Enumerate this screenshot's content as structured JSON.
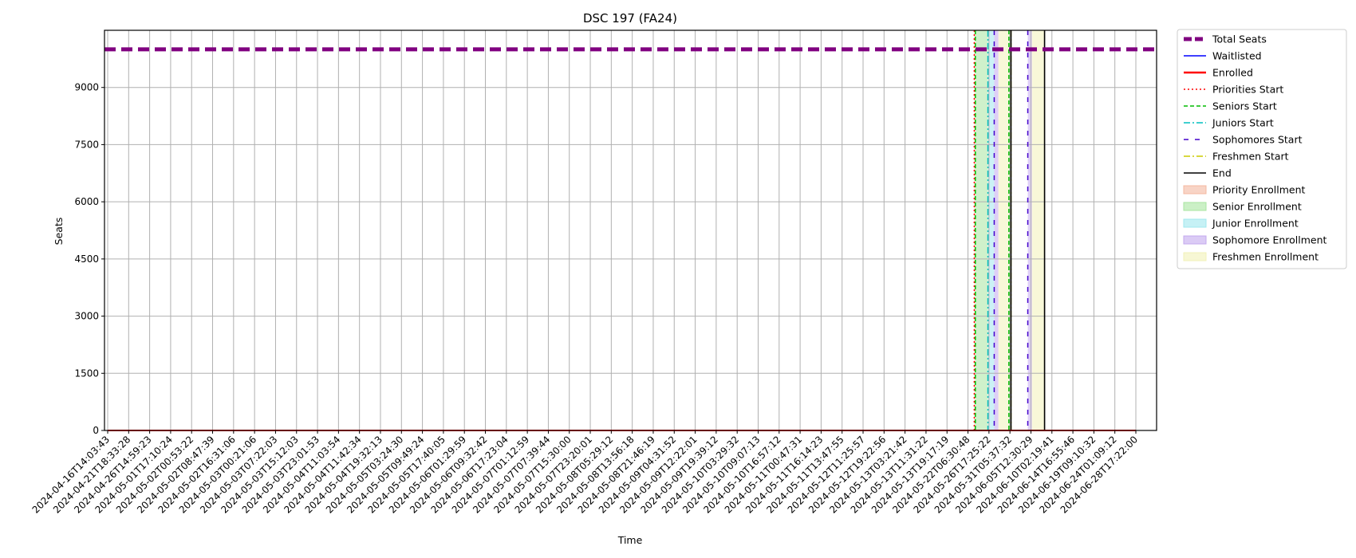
{
  "chart_data": {
    "type": "line",
    "title": "DSC 197 (FA24)",
    "xlabel": "Time",
    "ylabel": "Seats",
    "ylim": [
      0,
      10500
    ],
    "yticks": [
      0,
      1500,
      3000,
      4500,
      6000,
      7500,
      9000
    ],
    "grid": true,
    "legend_position": "outside-right",
    "x_tick_labels": [
      "2024-04-16T14:03:43",
      "2024-04-21T18:33:28",
      "2024-04-26T14:59:23",
      "2024-05-01T17:10:24",
      "2024-05-02T00:53:22",
      "2024-05-02T08:47:39",
      "2024-05-02T16:31:06",
      "2024-05-03T00:21:06",
      "2024-05-03T07:22:03",
      "2024-05-03T15:12:03",
      "2024-05-03T23:01:53",
      "2024-05-04T11:03:54",
      "2024-05-04T11:42:34",
      "2024-05-04T19:32:13",
      "2024-05-05T03:24:30",
      "2024-05-05T09:49:24",
      "2024-05-05T17:40:05",
      "2024-05-06T01:29:59",
      "2024-05-06T09:32:42",
      "2024-05-06T17:23:04",
      "2024-05-07T01:12:59",
      "2024-05-07T07:39:44",
      "2024-05-07T15:30:00",
      "2024-05-07T23:20:01",
      "2024-05-08T05:29:12",
      "2024-05-08T13:56:18",
      "2024-05-08T21:46:19",
      "2024-05-09T04:31:52",
      "2024-05-09T12:22:01",
      "2024-05-09T19:39:12",
      "2024-05-10T03:29:32",
      "2024-05-10T09:07:13",
      "2024-05-10T16:57:12",
      "2024-05-11T00:47:31",
      "2024-05-11T16:14:23",
      "2024-05-11T13:47:55",
      "2024-05-12T11:25:57",
      "2024-05-12T19:22:56",
      "2024-05-13T03:21:42",
      "2024-05-13T11:31:22",
      "2024-05-13T19:17:19",
      "2024-05-22T06:30:48",
      "2024-05-26T17:25:22",
      "2024-05-31T05:37:32",
      "2024-06-05T12:30:29",
      "2024-06-10T02:19:41",
      "2024-06-14T16:55:46",
      "2024-06-19T09:10:32",
      "2024-06-24T01:09:12",
      "2024-06-28T17:22:00"
    ],
    "series": [
      {
        "name": "Total Seats",
        "color": "#800080",
        "style": "dashed-thick",
        "values": [
          10000,
          10000,
          10000,
          10000,
          10000,
          10000,
          10000,
          10000,
          10000,
          10000,
          10000,
          10000,
          10000,
          10000,
          10000,
          10000,
          10000,
          10000,
          10000,
          10000,
          10000,
          10000,
          10000,
          10000,
          10000,
          10000,
          10000,
          10000,
          10000,
          10000,
          10000,
          10000,
          10000,
          10000,
          10000,
          10000,
          10000,
          10000,
          10000,
          10000,
          10000,
          10000,
          10000,
          10000,
          10000,
          10000,
          10000,
          10000,
          10000,
          10000
        ]
      },
      {
        "name": "Waitlisted",
        "color": "#0000ff",
        "style": "solid",
        "values": [
          0,
          0,
          0,
          0,
          0,
          0,
          0,
          0,
          0,
          0,
          0,
          0,
          0,
          0,
          0,
          0,
          0,
          0,
          0,
          0,
          0,
          0,
          0,
          0,
          0,
          0,
          0,
          0,
          0,
          0,
          0,
          0,
          0,
          0,
          0,
          0,
          0,
          0,
          0,
          0,
          0,
          0,
          0,
          0,
          0,
          0,
          0,
          0,
          0,
          0
        ]
      },
      {
        "name": "Enrolled",
        "color": "#ff0000",
        "style": "solid",
        "values": [
          0,
          0,
          0,
          0,
          0,
          0,
          0,
          0,
          0,
          0,
          0,
          0,
          0,
          0,
          0,
          0,
          0,
          0,
          0,
          0,
          0,
          0,
          0,
          0,
          0,
          0,
          0,
          0,
          0,
          0,
          0,
          0,
          0,
          0,
          0,
          0,
          0,
          0,
          0,
          0,
          0,
          0,
          0,
          0,
          0,
          0,
          0,
          0,
          0,
          0
        ]
      }
    ],
    "vertical_markers": [
      {
        "name": "Priorities Start",
        "x_index": 41.3,
        "color": "#ff0000",
        "style": "dotted"
      },
      {
        "name": "Seniors Start",
        "x_index": 41.35,
        "color": "#00bb00",
        "style": "dashed"
      },
      {
        "name": "Juniors Start",
        "x_index": 41.95,
        "color": "#00bfbf",
        "style": "dashdot"
      },
      {
        "name": "Sophomores Start",
        "x_index": 42.25,
        "color": "#4400cc",
        "style": "loosedash"
      },
      {
        "name": "Sophomores Start",
        "x_index": 43.85,
        "color": "#4400cc",
        "style": "loosedash"
      },
      {
        "name": "Seniors Start",
        "x_index": 42.95,
        "color": "#00bb00",
        "style": "dashed"
      },
      {
        "name": "Freshmen Start",
        "x_index": 43.05,
        "color": "#cccc00",
        "style": "dashdot"
      },
      {
        "name": "End",
        "x_index": 44.65,
        "color": "#000000",
        "style": "solid"
      },
      {
        "name": "End",
        "x_index": 43.05,
        "color": "#000000",
        "style": "solid"
      }
    ],
    "shaded_regions": [
      {
        "name": "Priority Enrollment",
        "from_index": 41.3,
        "to_index": 41.35,
        "color": "#f4b8a0"
      },
      {
        "name": "Senior Enrollment",
        "from_index": 41.35,
        "to_index": 41.95,
        "color": "#a8e6a0"
      },
      {
        "name": "Junior Enrollment",
        "from_index": 41.95,
        "to_index": 42.25,
        "color": "#a0e8ee"
      },
      {
        "name": "Sophomore Enrollment",
        "from_index": 42.25,
        "to_index": 42.45,
        "color": "#c3a8ee"
      },
      {
        "name": "Freshmen Enrollment",
        "from_index": 42.45,
        "to_index": 42.95,
        "color": "#f2f2b8"
      },
      {
        "name": "Senior Enrollment",
        "from_index": 42.95,
        "to_index": 43.05,
        "color": "#a8e6a0"
      },
      {
        "name": "Sophomore Enrollment",
        "from_index": 43.85,
        "to_index": 44.05,
        "color": "#c3a8ee"
      },
      {
        "name": "Freshmen Enrollment",
        "from_index": 44.05,
        "to_index": 44.65,
        "color": "#f2f2b8"
      }
    ],
    "legend": [
      {
        "label": "Total Seats",
        "kind": "line",
        "color": "#800080",
        "style": "dashed-thick"
      },
      {
        "label": "Waitlisted",
        "kind": "line",
        "color": "#0000ff",
        "style": "solid"
      },
      {
        "label": "Enrolled",
        "kind": "line",
        "color": "#ff0000",
        "style": "solid-thick"
      },
      {
        "label": "Priorities Start",
        "kind": "line",
        "color": "#ff0000",
        "style": "dotted"
      },
      {
        "label": "Seniors Start",
        "kind": "line",
        "color": "#00bb00",
        "style": "dashed"
      },
      {
        "label": "Juniors Start",
        "kind": "line",
        "color": "#00bfbf",
        "style": "dashdot"
      },
      {
        "label": "Sophomores Start",
        "kind": "line",
        "color": "#4400cc",
        "style": "loosedash"
      },
      {
        "label": "Freshmen Start",
        "kind": "line",
        "color": "#cccc00",
        "style": "dashdot"
      },
      {
        "label": "End",
        "kind": "line",
        "color": "#000000",
        "style": "solid"
      },
      {
        "label": "Priority Enrollment",
        "kind": "patch",
        "color": "#f4b8a0"
      },
      {
        "label": "Senior Enrollment",
        "kind": "patch",
        "color": "#a8e6a0"
      },
      {
        "label": "Junior Enrollment",
        "kind": "patch",
        "color": "#a0e8ee"
      },
      {
        "label": "Sophomore Enrollment",
        "kind": "patch",
        "color": "#c3a8ee"
      },
      {
        "label": "Freshmen Enrollment",
        "kind": "patch",
        "color": "#f2f2b8"
      }
    ]
  }
}
